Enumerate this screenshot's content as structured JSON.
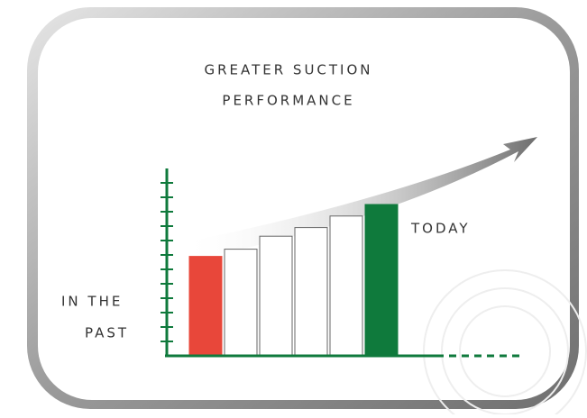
{
  "chart_data": {
    "type": "bar",
    "title": [
      "GREATER SUCTION",
      "PERFORMANCE"
    ],
    "annotations": [
      "IN THE",
      "PAST",
      "TODAY"
    ],
    "categories": [
      null,
      null,
      null,
      null,
      null,
      null
    ],
    "values": [
      6.9,
      7.4,
      8.3,
      8.9,
      9.7,
      10.5
    ],
    "colors": [
      "#e8473a",
      "#ffffff",
      "#ffffff",
      "#ffffff",
      "#ffffff",
      "#0f7a3c"
    ],
    "axis_color": "#0f7a3c",
    "ylim": [
      0,
      13
    ],
    "yticks": [
      1,
      2,
      3,
      4,
      5,
      6,
      7,
      8,
      9,
      10,
      11,
      12
    ]
  }
}
